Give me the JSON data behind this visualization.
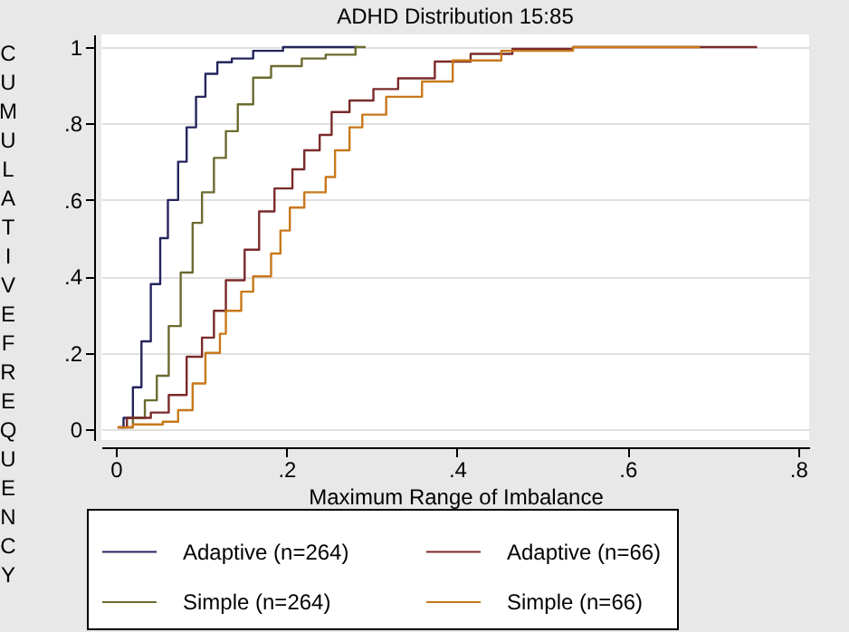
{
  "chart_data": {
    "type": "step",
    "title": "ADHD Distribution 15:85",
    "xlabel": "Maximum Range of Imbalance",
    "ylabel": "CUMULATIVE FREQUENCY",
    "xlim": [
      -0.017,
      0.813
    ],
    "ylim": [
      -0.028,
      1.033
    ],
    "xticks": [
      {
        "value": 0,
        "label": "0"
      },
      {
        "value": 0.2,
        "label": ".2"
      },
      {
        "value": 0.4,
        "label": ".4"
      },
      {
        "value": 0.6,
        "label": ".6"
      },
      {
        "value": 0.8,
        "label": ".8"
      }
    ],
    "yticks": [
      {
        "value": 0,
        "label": "0"
      },
      {
        "value": 0.2,
        "label": ".2"
      },
      {
        "value": 0.4,
        "label": ".4"
      },
      {
        "value": 0.6,
        "label": ".6"
      },
      {
        "value": 0.8,
        "label": ".8"
      },
      {
        "value": 1,
        "label": "1"
      }
    ],
    "grid": "y",
    "legend": "bottom",
    "series": [
      {
        "name": "Adaptive (n=264)",
        "color": "#25255e",
        "x": [
          0.006,
          0.009,
          0.02,
          0.03,
          0.041,
          0.052,
          0.061,
          0.073,
          0.083,
          0.094,
          0.105,
          0.119,
          0.136,
          0.161,
          0.196,
          0.283
        ],
        "values": [
          0.005,
          0.03,
          0.11,
          0.23,
          0.38,
          0.5,
          0.6,
          0.7,
          0.79,
          0.87,
          0.93,
          0.96,
          0.97,
          0.99,
          1.0,
          1.0
        ]
      },
      {
        "name": "Simple (n=264)",
        "color": "#6b6b30",
        "x": [
          0.013,
          0.02,
          0.034,
          0.048,
          0.062,
          0.076,
          0.09,
          0.101,
          0.115,
          0.129,
          0.143,
          0.161,
          0.182,
          0.218,
          0.246,
          0.281,
          0.293
        ],
        "values": [
          0.005,
          0.03,
          0.076,
          0.14,
          0.27,
          0.41,
          0.54,
          0.62,
          0.71,
          0.78,
          0.85,
          0.92,
          0.95,
          0.97,
          0.98,
          1.0,
          1.0
        ]
      },
      {
        "name": "Adaptive (n=66)",
        "color": "#7a2a2a",
        "x": [
          0.002,
          0.013,
          0.041,
          0.062,
          0.083,
          0.101,
          0.115,
          0.129,
          0.151,
          0.168,
          0.186,
          0.207,
          0.221,
          0.239,
          0.253,
          0.274,
          0.302,
          0.331,
          0.374,
          0.416,
          0.465,
          0.536,
          0.752
        ],
        "values": [
          0.005,
          0.03,
          0.044,
          0.09,
          0.19,
          0.24,
          0.31,
          0.39,
          0.47,
          0.57,
          0.63,
          0.68,
          0.73,
          0.77,
          0.83,
          0.86,
          0.89,
          0.918,
          0.962,
          0.982,
          0.995,
          1.0,
          1.0
        ]
      },
      {
        "name": "Simple (n=66)",
        "color": "#c8781a",
        "x": [
          0.002,
          0.02,
          0.055,
          0.073,
          0.09,
          0.105,
          0.122,
          0.129,
          0.147,
          0.161,
          0.182,
          0.193,
          0.204,
          0.221,
          0.246,
          0.257,
          0.274,
          0.289,
          0.317,
          0.359,
          0.395,
          0.452,
          0.536,
          0.685
        ],
        "values": [
          0.005,
          0.013,
          0.02,
          0.05,
          0.12,
          0.2,
          0.25,
          0.31,
          0.36,
          0.4,
          0.46,
          0.52,
          0.58,
          0.62,
          0.66,
          0.73,
          0.79,
          0.823,
          0.87,
          0.91,
          0.965,
          0.99,
          1.0,
          1.0
        ]
      }
    ]
  }
}
